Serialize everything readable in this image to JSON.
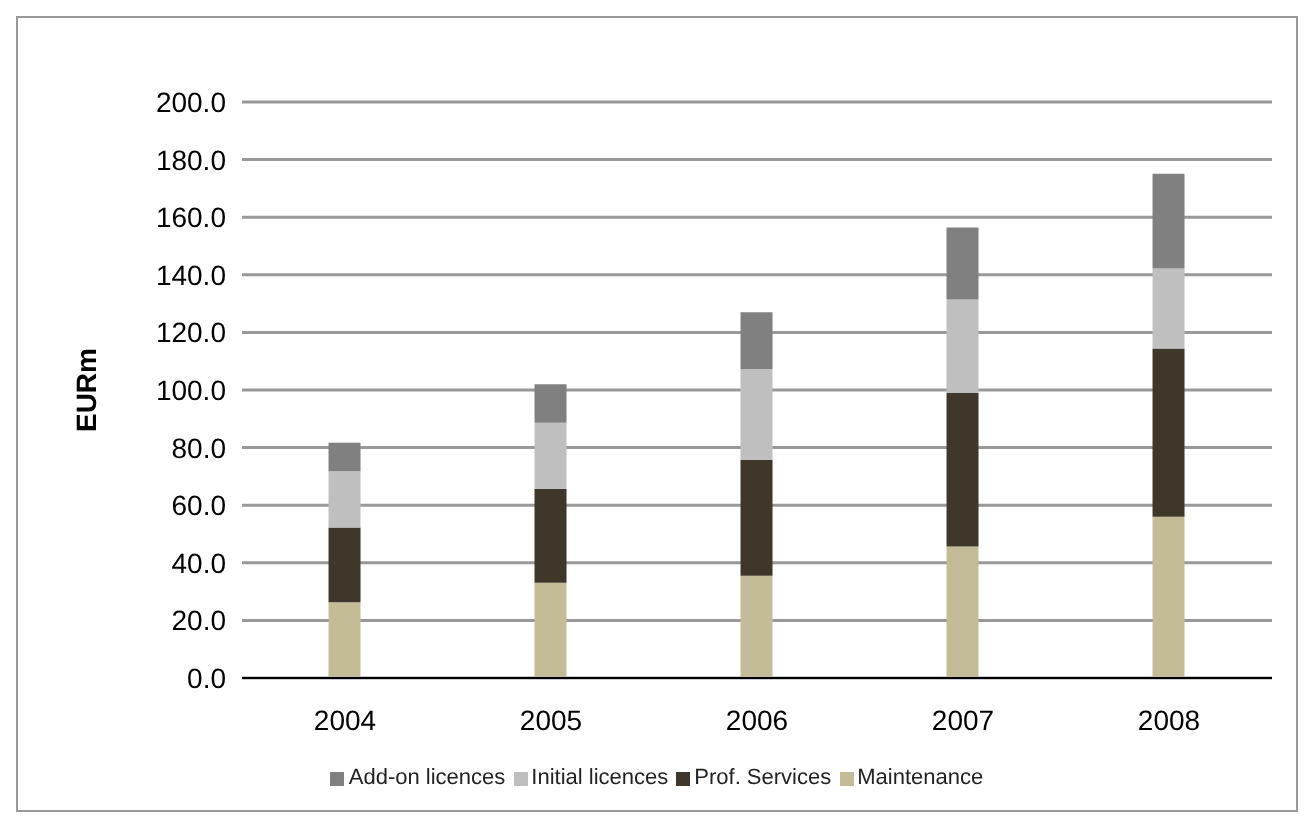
{
  "chart_data": {
    "type": "bar",
    "stacked": true,
    "ylabel": "EURm",
    "categories": [
      "2004",
      "2005",
      "2006",
      "2007",
      "2008"
    ],
    "series": [
      {
        "name": "Maintenance",
        "color": "#c4bc97",
        "values": [
          26.3,
          33.1,
          35.5,
          45.7,
          56
        ]
      },
      {
        "name": "Prof. Services",
        "color": "#40372b",
        "values": [
          26,
          32.6,
          40.2,
          53.3,
          58.4
        ]
      },
      {
        "name": "Initial licences",
        "color": "#bfbfbf",
        "values": [
          19.5,
          22.9,
          31.6,
          32.4,
          27.8
        ]
      },
      {
        "name": "Add-on licences",
        "color": "#808080",
        "values": [
          9.9,
          13.4,
          19.7,
          25,
          32.9
        ]
      }
    ],
    "ylim": [
      0,
      200
    ],
    "yticks": [
      {
        "value": 0,
        "label": "0.0"
      },
      {
        "value": 20,
        "label": "20.0"
      },
      {
        "value": 40,
        "label": "40.0"
      },
      {
        "value": 60,
        "label": "60.0"
      },
      {
        "value": 80,
        "label": "80.0"
      },
      {
        "value": 100,
        "label": "100.0"
      },
      {
        "value": 120,
        "label": "120.0"
      },
      {
        "value": 140,
        "label": "140.0"
      },
      {
        "value": 160,
        "label": "160.0"
      },
      {
        "value": 180,
        "label": "180.0"
      },
      {
        "value": 200,
        "label": "200.0"
      }
    ],
    "grid": "y",
    "legend": "bottom"
  }
}
